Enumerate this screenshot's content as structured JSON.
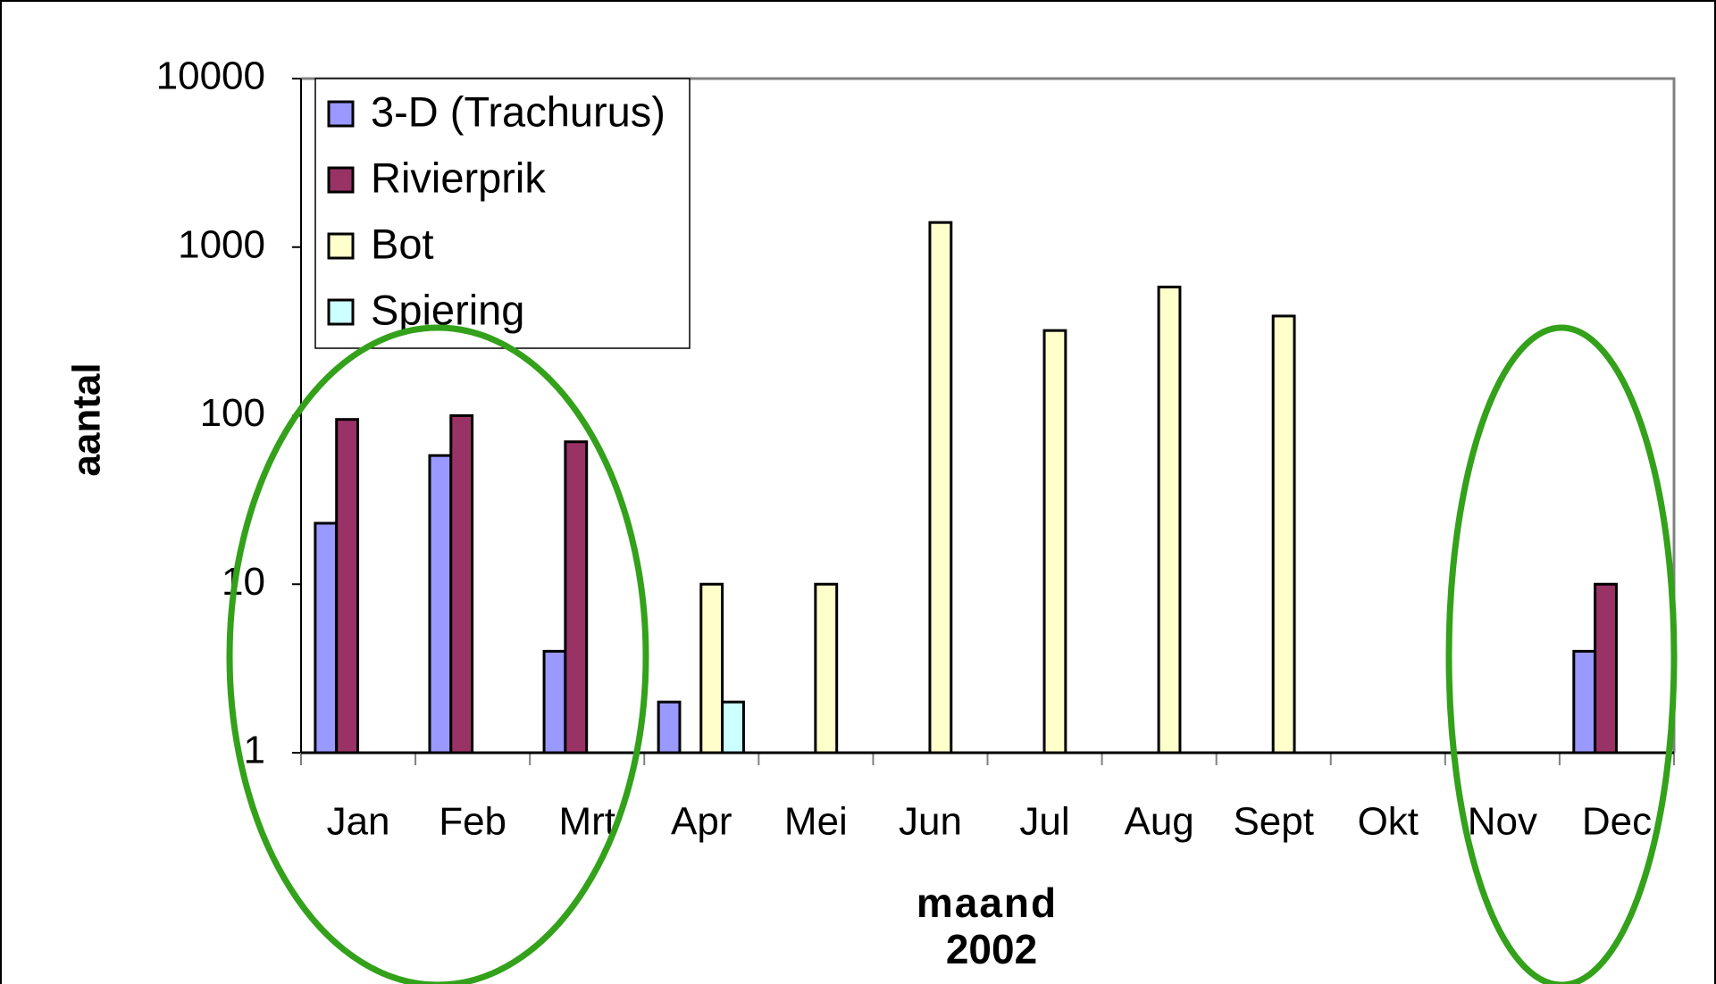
{
  "chart_data": {
    "type": "bar",
    "y_label": "aantal",
    "x_label": [
      "maand",
      "2002"
    ],
    "categories": [
      "Jan",
      "Feb",
      "Mrt",
      "Apr",
      "Mei",
      "Jun",
      "Jul",
      "Aug",
      "Sept",
      "Okt",
      "Nov",
      "Dec"
    ],
    "series": [
      {
        "name": "3-D (Trachurus)",
        "color": "#9999ff",
        "values": [
          23,
          58,
          4,
          2,
          null,
          null,
          null,
          null,
          null,
          null,
          null,
          4
        ]
      },
      {
        "name": "Rivierprik",
        "color": "#993366",
        "values": [
          95,
          100,
          70,
          null,
          null,
          null,
          null,
          null,
          null,
          null,
          null,
          10
        ]
      },
      {
        "name": "Bot",
        "color": "#ffffcc",
        "values": [
          null,
          null,
          null,
          10,
          10,
          1400,
          320,
          580,
          390,
          null,
          null,
          null
        ]
      },
      {
        "name": "Spiering",
        "color": "#ccffff",
        "values": [
          null,
          null,
          null,
          2,
          null,
          null,
          null,
          null,
          null,
          null,
          null,
          null
        ]
      }
    ],
    "log_scale": true,
    "ylim": [
      1,
      10000
    ],
    "yticks": [
      1,
      10,
      100,
      1000,
      10000
    ],
    "legend": "top-left"
  }
}
